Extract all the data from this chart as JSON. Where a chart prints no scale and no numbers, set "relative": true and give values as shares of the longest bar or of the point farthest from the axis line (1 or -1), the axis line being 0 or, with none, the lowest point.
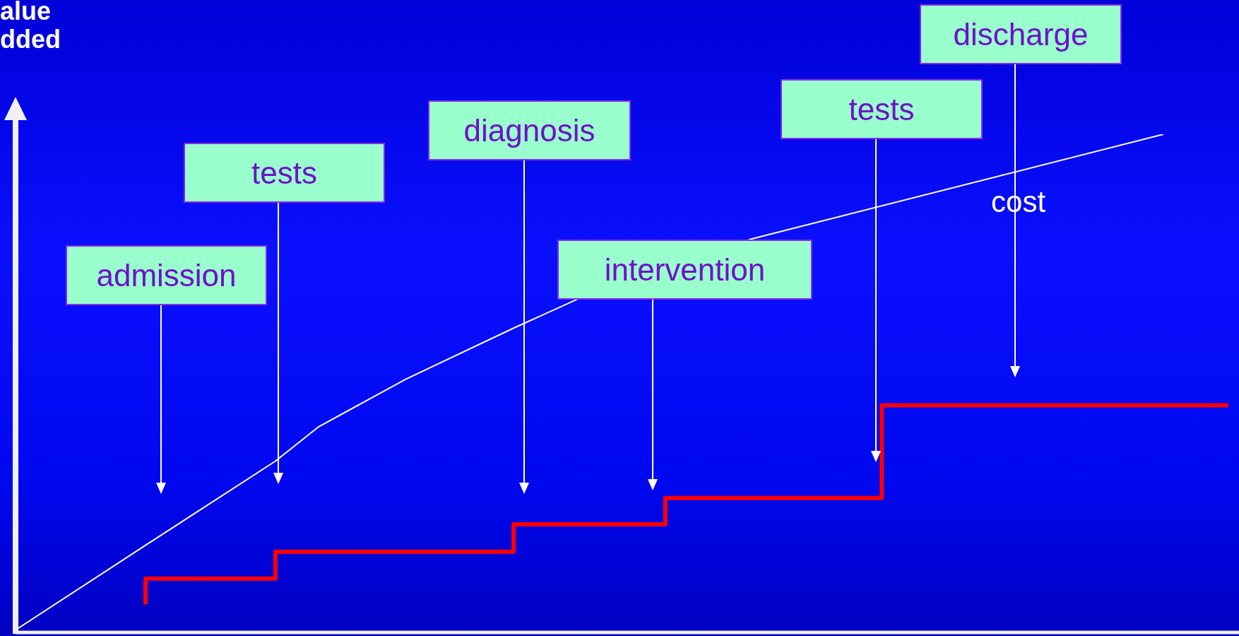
{
  "chart_data": {
    "type": "line",
    "relative": true,
    "ylabel": "alue\ndded",
    "legend": false,
    "marker": "none",
    "categories": [
      null,
      null,
      null,
      null,
      null,
      null,
      null,
      null,
      null,
      null,
      null,
      null,
      null,
      null,
      null,
      null,
      null,
      null,
      null,
      null,
      null,
      null,
      null,
      null,
      null,
      null,
      null,
      null,
      null,
      null,
      null,
      null,
      null,
      null,
      null,
      null,
      null,
      null,
      null,
      null,
      null,
      null,
      null,
      null,
      null,
      null,
      null,
      null,
      null,
      null,
      null,
      null,
      null,
      null,
      null,
      null,
      null
    ],
    "series": [
      {
        "type": "step",
        "color": "#ff0000",
        "values": [
          null,
          null,
          null,
          null,
          null,
          null,
          0.056,
          null,
          null,
          null,
          null,
          null,
          0.108,
          null,
          null,
          null,
          null,
          null,
          null,
          null,
          null,
          null,
          null,
          0.162,
          null,
          null,
          null,
          null,
          null,
          null,
          0.217,
          null,
          null,
          null,
          null,
          null,
          null,
          null,
          null,
          null,
          0.27,
          null,
          null,
          null,
          null,
          null,
          0.456,
          null,
          null,
          null,
          null,
          null,
          null,
          null,
          null,
          null,
          0.456
        ]
      },
      {
        "name": "cost",
        "color": "#ffffff",
        "values": [
          0.005,
          null,
          null,
          null,
          null,
          null,
          0.175,
          null,
          null,
          null,
          null,
          null,
          0.344,
          null,
          0.413,
          null,
          null,
          null,
          0.508,
          null,
          null,
          null,
          null,
          0.611,
          null,
          null,
          0.67,
          null,
          null,
          null,
          null,
          null,
          null,
          null,
          0.79,
          null,
          null,
          null,
          null,
          null,
          null,
          null,
          null,
          null,
          null,
          null,
          null,
          null,
          null,
          null,
          null,
          null,
          null,
          1.0,
          null,
          null,
          null
        ]
      }
    ],
    "annotations": [
      "admission",
      "tests",
      "diagnosis",
      "intervention",
      "tests",
      "discharge"
    ]
  }
}
